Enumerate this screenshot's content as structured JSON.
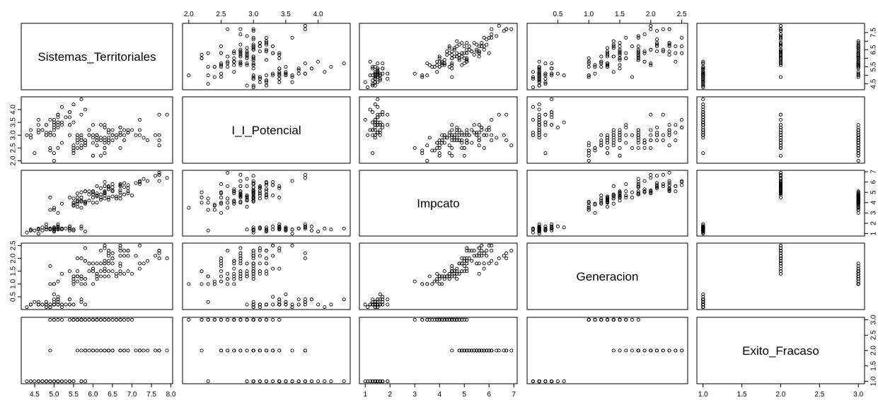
{
  "chart_data": {
    "type": "scatter",
    "subtype": "pairs-matrix",
    "title": "",
    "grid": false,
    "point_style": "open-circle",
    "variables": [
      {
        "name": "Sistemas_Territoriales",
        "range": [
          4.3,
          7.9
        ],
        "ticks": [
          "4.5",
          "5.0",
          "5.5",
          "6.0",
          "6.5",
          "7.0",
          "7.5",
          "8.0"
        ],
        "tick_values": [
          4.5,
          5.0,
          5.5,
          6.0,
          6.5,
          7.0,
          7.5,
          8.0
        ],
        "side_ticks": [
          "4.5",
          "5.5",
          "6.5",
          "7.5"
        ],
        "side_tick_values": [
          4.5,
          5.5,
          6.5,
          7.5
        ],
        "side_ticks_minor": [
          5.0,
          6.0,
          7.0
        ]
      },
      {
        "name": "I_I_Potencial",
        "range": [
          2.0,
          4.4
        ],
        "ticks": [
          "2.0",
          "2.5",
          "3.0",
          "3.5",
          "4.0"
        ],
        "tick_values": [
          2.0,
          2.5,
          3.0,
          3.5,
          4.0
        ]
      },
      {
        "name": "Impcato",
        "range": [
          1.0,
          6.9
        ],
        "ticks": [
          "1",
          "2",
          "3",
          "4",
          "5",
          "6",
          "7"
        ],
        "tick_values": [
          1,
          2,
          3,
          4,
          5,
          6,
          7
        ]
      },
      {
        "name": "Generacion",
        "range": [
          0.1,
          2.5
        ],
        "ticks": [
          "0.5",
          "1.0",
          "1.5",
          "2.0",
          "2.5"
        ],
        "tick_values": [
          0.5,
          1.0,
          1.5,
          2.0,
          2.5
        ]
      },
      {
        "name": "Exito_Fracaso",
        "range": [
          1.0,
          3.0
        ],
        "ticks": [
          "1.0",
          "1.5",
          "2.0",
          "2.5",
          "3.0"
        ],
        "tick_values": [
          1.0,
          1.5,
          2.0,
          2.5,
          3.0
        ]
      }
    ],
    "rows": [
      [
        5.1,
        3.5,
        1.4,
        0.2,
        1
      ],
      [
        4.9,
        3.0,
        1.4,
        0.2,
        1
      ],
      [
        4.7,
        3.2,
        1.3,
        0.2,
        1
      ],
      [
        4.6,
        3.1,
        1.5,
        0.2,
        1
      ],
      [
        5.0,
        3.6,
        1.4,
        0.2,
        1
      ],
      [
        5.4,
        3.9,
        1.7,
        0.4,
        1
      ],
      [
        4.6,
        3.4,
        1.4,
        0.3,
        1
      ],
      [
        5.0,
        3.4,
        1.5,
        0.2,
        1
      ],
      [
        4.4,
        2.9,
        1.4,
        0.2,
        1
      ],
      [
        4.9,
        3.1,
        1.5,
        0.1,
        1
      ],
      [
        5.4,
        3.7,
        1.5,
        0.2,
        1
      ],
      [
        4.8,
        3.4,
        1.6,
        0.2,
        1
      ],
      [
        4.8,
        3.0,
        1.4,
        0.1,
        1
      ],
      [
        4.3,
        3.0,
        1.1,
        0.1,
        1
      ],
      [
        5.8,
        4.0,
        1.2,
        0.2,
        1
      ],
      [
        5.7,
        4.4,
        1.5,
        0.4,
        1
      ],
      [
        5.4,
        3.9,
        1.3,
        0.4,
        1
      ],
      [
        5.1,
        3.5,
        1.4,
        0.3,
        1
      ],
      [
        5.7,
        3.8,
        1.7,
        0.3,
        1
      ],
      [
        5.1,
        3.8,
        1.5,
        0.3,
        1
      ],
      [
        5.4,
        3.4,
        1.7,
        0.2,
        1
      ],
      [
        5.1,
        3.7,
        1.5,
        0.4,
        1
      ],
      [
        4.6,
        3.6,
        1.0,
        0.2,
        1
      ],
      [
        5.1,
        3.3,
        1.7,
        0.5,
        1
      ],
      [
        4.8,
        3.4,
        1.9,
        0.2,
        1
      ],
      [
        5.0,
        3.0,
        1.6,
        0.2,
        1
      ],
      [
        5.0,
        3.4,
        1.6,
        0.4,
        1
      ],
      [
        5.2,
        3.5,
        1.5,
        0.2,
        1
      ],
      [
        5.2,
        3.4,
        1.4,
        0.2,
        1
      ],
      [
        4.7,
        3.2,
        1.6,
        0.2,
        1
      ],
      [
        4.8,
        3.1,
        1.6,
        0.2,
        1
      ],
      [
        5.4,
        3.4,
        1.5,
        0.4,
        1
      ],
      [
        5.2,
        4.1,
        1.5,
        0.1,
        1
      ],
      [
        5.5,
        4.2,
        1.4,
        0.2,
        1
      ],
      [
        4.9,
        3.1,
        1.5,
        0.2,
        1
      ],
      [
        5.0,
        3.2,
        1.2,
        0.2,
        1
      ],
      [
        5.5,
        3.5,
        1.3,
        0.2,
        1
      ],
      [
        4.9,
        3.6,
        1.4,
        0.1,
        1
      ],
      [
        4.4,
        3.0,
        1.3,
        0.2,
        1
      ],
      [
        5.1,
        3.4,
        1.5,
        0.2,
        1
      ],
      [
        5.0,
        3.5,
        1.3,
        0.3,
        1
      ],
      [
        4.5,
        2.3,
        1.3,
        0.3,
        1
      ],
      [
        4.4,
        3.2,
        1.3,
        0.2,
        1
      ],
      [
        5.0,
        3.5,
        1.6,
        0.6,
        1
      ],
      [
        5.1,
        3.8,
        1.9,
        0.4,
        1
      ],
      [
        4.8,
        3.0,
        1.4,
        0.3,
        1
      ],
      [
        5.1,
        3.8,
        1.6,
        0.2,
        1
      ],
      [
        4.6,
        3.2,
        1.4,
        0.2,
        1
      ],
      [
        5.3,
        3.7,
        1.5,
        0.2,
        1
      ],
      [
        5.0,
        3.3,
        1.4,
        0.2,
        1
      ],
      [
        7.0,
        3.2,
        4.7,
        1.4,
        3
      ],
      [
        6.4,
        3.2,
        4.5,
        1.5,
        3
      ],
      [
        6.9,
        3.1,
        4.9,
        1.5,
        3
      ],
      [
        5.5,
        2.3,
        4.0,
        1.3,
        3
      ],
      [
        6.5,
        2.8,
        4.6,
        1.5,
        3
      ],
      [
        5.7,
        2.8,
        4.5,
        1.3,
        3
      ],
      [
        6.3,
        3.3,
        4.7,
        1.6,
        3
      ],
      [
        4.9,
        2.4,
        3.3,
        1.0,
        3
      ],
      [
        6.6,
        2.9,
        4.6,
        1.3,
        3
      ],
      [
        5.2,
        2.7,
        3.9,
        1.4,
        3
      ],
      [
        5.0,
        2.0,
        3.5,
        1.0,
        3
      ],
      [
        5.9,
        3.0,
        4.2,
        1.5,
        3
      ],
      [
        6.0,
        2.2,
        4.0,
        1.0,
        3
      ],
      [
        6.1,
        2.9,
        4.7,
        1.4,
        3
      ],
      [
        5.6,
        2.9,
        3.6,
        1.3,
        3
      ],
      [
        6.7,
        3.1,
        4.4,
        1.4,
        3
      ],
      [
        5.6,
        3.0,
        4.5,
        1.5,
        3
      ],
      [
        5.8,
        2.7,
        4.1,
        1.0,
        3
      ],
      [
        6.2,
        2.2,
        4.5,
        1.5,
        3
      ],
      [
        5.6,
        2.5,
        3.9,
        1.1,
        3
      ],
      [
        5.9,
        3.2,
        4.8,
        1.8,
        3
      ],
      [
        6.1,
        2.8,
        4.0,
        1.3,
        3
      ],
      [
        6.3,
        2.5,
        4.9,
        1.5,
        3
      ],
      [
        6.1,
        2.8,
        4.7,
        1.2,
        3
      ],
      [
        6.4,
        2.9,
        4.3,
        1.3,
        3
      ],
      [
        6.6,
        3.0,
        4.4,
        1.4,
        3
      ],
      [
        6.8,
        2.8,
        4.8,
        1.4,
        3
      ],
      [
        6.7,
        3.0,
        5.0,
        1.7,
        3
      ],
      [
        6.0,
        2.9,
        4.5,
        1.5,
        3
      ],
      [
        5.7,
        2.6,
        3.5,
        1.0,
        3
      ],
      [
        5.5,
        2.4,
        3.8,
        1.1,
        3
      ],
      [
        5.5,
        2.4,
        3.7,
        1.0,
        3
      ],
      [
        5.8,
        2.7,
        3.9,
        1.2,
        3
      ],
      [
        6.0,
        2.7,
        5.1,
        1.6,
        3
      ],
      [
        5.4,
        3.0,
        4.5,
        1.5,
        3
      ],
      [
        6.0,
        3.4,
        4.5,
        1.6,
        3
      ],
      [
        6.7,
        3.1,
        4.7,
        1.5,
        3
      ],
      [
        6.3,
        2.3,
        4.4,
        1.3,
        3
      ],
      [
        5.6,
        3.0,
        4.1,
        1.3,
        3
      ],
      [
        5.5,
        2.5,
        4.0,
        1.3,
        3
      ],
      [
        5.5,
        2.6,
        4.4,
        1.2,
        3
      ],
      [
        6.1,
        3.0,
        4.6,
        1.4,
        3
      ],
      [
        5.8,
        2.6,
        4.0,
        1.2,
        3
      ],
      [
        5.0,
        2.3,
        3.3,
        1.0,
        3
      ],
      [
        5.6,
        2.7,
        4.2,
        1.3,
        3
      ],
      [
        5.7,
        3.0,
        4.2,
        1.2,
        3
      ],
      [
        5.7,
        2.9,
        4.2,
        1.3,
        3
      ],
      [
        6.2,
        2.9,
        4.3,
        1.3,
        3
      ],
      [
        5.1,
        2.5,
        3.0,
        1.1,
        3
      ],
      [
        5.7,
        2.8,
        4.1,
        1.3,
        3
      ],
      [
        6.3,
        3.3,
        6.0,
        2.5,
        2
      ],
      [
        5.8,
        2.7,
        5.1,
        1.9,
        2
      ],
      [
        7.1,
        3.0,
        5.9,
        2.1,
        2
      ],
      [
        6.3,
        2.9,
        5.6,
        1.8,
        2
      ],
      [
        6.5,
        3.0,
        5.8,
        2.2,
        2
      ],
      [
        7.6,
        3.0,
        6.6,
        2.1,
        2
      ],
      [
        4.9,
        2.5,
        4.5,
        1.7,
        2
      ],
      [
        7.3,
        2.9,
        6.3,
        1.8,
        2
      ],
      [
        6.7,
        2.5,
        5.8,
        1.8,
        2
      ],
      [
        7.2,
        3.6,
        6.1,
        2.5,
        2
      ],
      [
        6.5,
        3.2,
        5.1,
        2.0,
        2
      ],
      [
        6.4,
        2.7,
        5.3,
        1.9,
        2
      ],
      [
        6.8,
        3.0,
        5.5,
        2.1,
        2
      ],
      [
        5.7,
        2.5,
        5.0,
        2.0,
        2
      ],
      [
        5.8,
        2.8,
        5.1,
        2.4,
        2
      ],
      [
        6.4,
        3.2,
        5.3,
        2.3,
        2
      ],
      [
        6.5,
        3.0,
        5.5,
        1.8,
        2
      ],
      [
        7.7,
        3.8,
        6.7,
        2.2,
        2
      ],
      [
        7.7,
        2.6,
        6.9,
        2.3,
        2
      ],
      [
        6.0,
        2.2,
        5.0,
        1.5,
        2
      ],
      [
        6.9,
        3.2,
        5.7,
        2.3,
        2
      ],
      [
        5.6,
        2.8,
        4.9,
        2.0,
        2
      ],
      [
        7.7,
        2.8,
        6.7,
        2.0,
        2
      ],
      [
        6.3,
        2.7,
        4.9,
        1.8,
        2
      ],
      [
        6.7,
        3.3,
        5.7,
        2.1,
        2
      ],
      [
        7.2,
        3.2,
        6.0,
        1.8,
        2
      ],
      [
        6.2,
        2.8,
        4.8,
        1.8,
        2
      ],
      [
        6.1,
        3.0,
        4.9,
        1.8,
        2
      ],
      [
        6.4,
        2.8,
        5.6,
        2.1,
        2
      ],
      [
        7.2,
        3.0,
        5.8,
        1.6,
        2
      ],
      [
        7.4,
        2.8,
        6.1,
        1.9,
        2
      ],
      [
        7.9,
        3.8,
        6.4,
        2.0,
        2
      ],
      [
        6.4,
        2.8,
        5.6,
        2.2,
        2
      ],
      [
        6.3,
        2.8,
        5.1,
        1.5,
        2
      ],
      [
        6.1,
        2.6,
        5.6,
        1.4,
        2
      ],
      [
        7.7,
        3.0,
        6.1,
        2.3,
        2
      ],
      [
        6.3,
        3.4,
        5.6,
        2.4,
        2
      ],
      [
        6.4,
        3.1,
        5.5,
        1.8,
        2
      ],
      [
        6.0,
        3.0,
        4.8,
        1.8,
        2
      ],
      [
        6.9,
        3.1,
        5.4,
        2.1,
        2
      ],
      [
        6.7,
        3.1,
        5.6,
        2.4,
        2
      ],
      [
        6.9,
        3.1,
        5.1,
        2.3,
        2
      ],
      [
        5.8,
        2.7,
        5.1,
        1.9,
        2
      ],
      [
        6.8,
        3.2,
        5.9,
        2.3,
        2
      ],
      [
        6.7,
        3.3,
        5.7,
        2.5,
        2
      ],
      [
        6.7,
        3.0,
        5.2,
        2.3,
        2
      ],
      [
        6.3,
        2.5,
        5.0,
        1.9,
        2
      ],
      [
        6.5,
        3.0,
        5.2,
        2.0,
        2
      ],
      [
        6.2,
        3.4,
        5.4,
        2.3,
        2
      ],
      [
        5.9,
        3.0,
        5.1,
        1.8,
        2
      ]
    ]
  }
}
